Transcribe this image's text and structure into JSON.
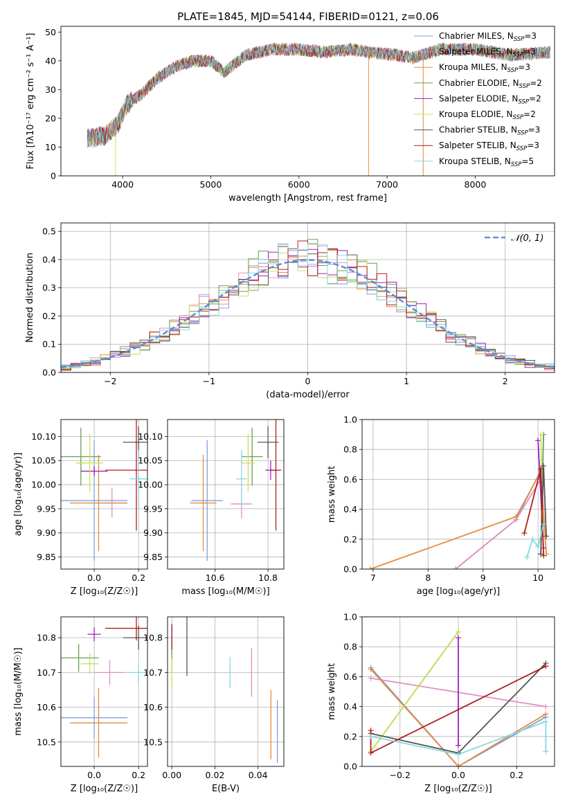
{
  "figure": {
    "title": "PLATE=1845, MJD=54144, FIBERID=0121, z=0.06"
  },
  "colors": {
    "Chabrier MILES": "#7f9fdf",
    "Salpeter MILES": "#e08fc0",
    "Kroupa MILES": "#e88a3c",
    "Chabrier ELODIE": "#6a9e4f",
    "Salpeter ELODIE": "#9b1fbf",
    "Kroupa ELODIE": "#c9e05a",
    "Chabrier STELIB": "#555555",
    "Salpeter STELIB": "#b01c1c",
    "Kroupa STELIB": "#86d8de"
  },
  "chart_data": [
    {
      "id": "spectrum",
      "type": "line",
      "xlabel": "wavelength [Angstrom, rest frame]",
      "ylabel": "Flux [fλ10⁻¹⁷ erg cm⁻² s⁻¹ A⁻¹]",
      "xlim": [
        3300,
        8900
      ],
      "ylim": [
        0,
        52
      ],
      "xticks": [
        4000,
        5000,
        6000,
        7000,
        8000
      ],
      "yticks": [
        0,
        10,
        20,
        30,
        40,
        50
      ],
      "legend_position": "top-right",
      "legend": [
        {
          "label": "Chabrier MILES, N",
          "sub": "SSP",
          "suffix": "=3"
        },
        {
          "label": "Salpeter MILES, N",
          "sub": "SSP",
          "suffix": "=3"
        },
        {
          "label": "Kroupa MILES, N",
          "sub": "SSP",
          "suffix": "=3"
        },
        {
          "label": "Chabrier ELODIE, N",
          "sub": "SSP",
          "suffix": "=2"
        },
        {
          "label": "Salpeter ELODIE, N",
          "sub": "SSP",
          "suffix": "=2"
        },
        {
          "label": "Kroupa ELODIE, N",
          "sub": "SSP",
          "suffix": "=2"
        },
        {
          "label": "Chabrier STELIB, N",
          "sub": "SSP",
          "suffix": "=3"
        },
        {
          "label": "Salpeter STELIB, N",
          "sub": "SSP",
          "suffix": "=3"
        },
        {
          "label": "Kroupa STELIB, N",
          "sub": "SSP",
          "suffix": "=5"
        }
      ],
      "x_range": [
        3600,
        8850
      ],
      "trend": [
        [
          3600,
          13
        ],
        [
          3800,
          14
        ],
        [
          3950,
          18
        ],
        [
          4050,
          25
        ],
        [
          4200,
          28
        ],
        [
          4400,
          34
        ],
        [
          4600,
          38
        ],
        [
          4800,
          40
        ],
        [
          5000,
          40
        ],
        [
          5150,
          36
        ],
        [
          5400,
          42
        ],
        [
          5700,
          44
        ],
        [
          6000,
          44
        ],
        [
          6300,
          43
        ],
        [
          6600,
          44
        ],
        [
          6800,
          43
        ],
        [
          7100,
          42
        ],
        [
          7300,
          41
        ],
        [
          7600,
          44
        ],
        [
          8000,
          44
        ],
        [
          8400,
          42
        ],
        [
          8850,
          43
        ]
      ],
      "dips": [
        {
          "x": 3920,
          "y": 0,
          "series": "Kroupa ELODIE"
        },
        {
          "x": 6790,
          "y": 0,
          "series": "Kroupa MILES"
        },
        {
          "x": 7410,
          "y": 0,
          "series": "Kroupa MILES"
        }
      ]
    },
    {
      "id": "residuals",
      "type": "histogram",
      "xlabel": "(data-model)/error",
      "ylabel": "Normed distribution",
      "xlim": [
        -2.5,
        2.5
      ],
      "ylim": [
        0,
        0.53
      ],
      "xticks": [
        -2,
        -1,
        0,
        1,
        2
      ],
      "yticks": [
        0.0,
        0.1,
        0.2,
        0.3,
        0.4,
        0.5
      ],
      "bin_width": 0.1,
      "reference": {
        "label": "𝒩(0, 1)",
        "mean": 0,
        "sigma": 1
      },
      "legend_position": "top-right"
    },
    {
      "id": "age_vs_Z",
      "type": "scatter",
      "xlabel": "Z [log₁₀(Z/Z☉)]",
      "ylabel": "age  [log₁₀(age/yr)]",
      "xlim": [
        -0.15,
        0.24
      ],
      "ylim": [
        9.825,
        10.135
      ],
      "xticks": [
        0.0,
        0.2
      ],
      "yticks": [
        9.85,
        9.9,
        9.95,
        10.0,
        10.05,
        10.1
      ],
      "points": [
        {
          "series": "Chabrier MILES",
          "x": 0.0,
          "y": 9.967,
          "xerr": 0.15,
          "yerr": 0.125
        },
        {
          "series": "Salpeter MILES",
          "x": 0.08,
          "y": 9.962,
          "xerr": 0.07,
          "yerr": 0.03
        },
        {
          "series": "Kroupa MILES",
          "x": 0.02,
          "y": 9.962,
          "xerr": 0.13,
          "yerr": 0.1
        },
        {
          "series": "Chabrier ELODIE",
          "x": -0.06,
          "y": 10.058,
          "xerr": 0.09,
          "yerr": 0.06
        },
        {
          "series": "Salpeter ELODIE",
          "x": 0.0,
          "y": 10.028,
          "xerr": 0.06,
          "yerr": 0.01
        },
        {
          "series": "Kroupa ELODIE",
          "x": -0.02,
          "y": 10.045,
          "xerr": 0.06,
          "yerr": 0.06
        },
        {
          "series": "Chabrier STELIB",
          "x": 0.2,
          "y": 10.088,
          "xerr": 0.07,
          "yerr": 0.033
        },
        {
          "series": "Salpeter STELIB",
          "x": 0.19,
          "y": 10.03,
          "xerr": 0.14,
          "yerr": 0.125
        },
        {
          "series": "Kroupa STELIB",
          "x": 0.2,
          "y": 10.012,
          "xerr": 0.04,
          "yerr": 0.06
        }
      ]
    },
    {
      "id": "age_vs_mass",
      "type": "scatter",
      "xlabel": "mass [log₁₀(M/M☉)]",
      "ylabel": "",
      "xlim": [
        10.42,
        10.86
      ],
      "ylim": [
        9.825,
        10.135
      ],
      "xticks": [
        10.6,
        10.8
      ],
      "yticks": [
        9.85,
        9.9,
        9.95,
        10.0,
        10.05,
        10.1
      ],
      "points": [
        {
          "series": "Chabrier MILES",
          "x": 10.57,
          "y": 9.967,
          "xerr": 0.06,
          "yerr": 0.125
        },
        {
          "series": "Salpeter MILES",
          "x": 10.7,
          "y": 9.96,
          "xerr": 0.04,
          "yerr": 0.03
        },
        {
          "series": "Kroupa MILES",
          "x": 10.555,
          "y": 9.962,
          "xerr": 0.05,
          "yerr": 0.1
        },
        {
          "series": "Chabrier ELODIE",
          "x": 10.74,
          "y": 10.058,
          "xerr": 0.04,
          "yerr": 0.06
        },
        {
          "series": "Salpeter ELODIE",
          "x": 10.81,
          "y": 10.03,
          "xerr": 0.02,
          "yerr": 0.02
        },
        {
          "series": "Kroupa ELODIE",
          "x": 10.725,
          "y": 10.045,
          "xerr": 0.025,
          "yerr": 0.06
        },
        {
          "series": "Chabrier STELIB",
          "x": 10.8,
          "y": 10.088,
          "xerr": 0.04,
          "yerr": 0.033
        },
        {
          "series": "Salpeter STELIB",
          "x": 10.83,
          "y": 10.03,
          "xerr": 0.02,
          "yerr": 0.125
        },
        {
          "series": "Kroupa STELIB",
          "x": 10.7,
          "y": 10.012,
          "xerr": 0.02,
          "yerr": 0.06
        }
      ]
    },
    {
      "id": "weight_vs_age",
      "type": "line",
      "xlabel": "age  [log₁₀(age/yr)]",
      "ylabel": "mass weight",
      "xlim": [
        6.8,
        10.3
      ],
      "ylim": [
        0,
        1
      ],
      "xticks": [
        7,
        8,
        9,
        10
      ],
      "yticks": [
        0.0,
        0.2,
        0.4,
        0.6,
        0.8,
        1.0
      ],
      "series": [
        {
          "name": "Chabrier MILES",
          "x": [
            8.5,
            9.6,
            10.05
          ],
          "y": [
            0.0,
            0.33,
            0.66
          ]
        },
        {
          "name": "Salpeter MILES",
          "x": [
            8.5,
            9.6,
            10.05,
            10.1
          ],
          "y": [
            0.0,
            0.33,
            0.6,
            0.4
          ]
        },
        {
          "name": "Kroupa MILES",
          "x": [
            6.95,
            9.6,
            10.05,
            10.15
          ],
          "y": [
            0.0,
            0.35,
            0.65,
            0.1
          ]
        },
        {
          "name": "Chabrier ELODIE",
          "x": [
            10.05,
            10.1
          ],
          "y": [
            0.1,
            0.9
          ]
        },
        {
          "name": "Salpeter ELODIE",
          "x": [
            10.0,
            10.1
          ],
          "y": [
            0.86,
            0.14
          ]
        },
        {
          "name": "Kroupa ELODIE",
          "x": [
            10.05,
            10.1
          ],
          "y": [
            0.9,
            0.1
          ]
        },
        {
          "name": "Chabrier STELIB",
          "x": [
            10.05,
            10.1,
            10.15
          ],
          "y": [
            0.1,
            0.69,
            0.22
          ]
        },
        {
          "name": "Salpeter STELIB",
          "x": [
            9.75,
            10.05,
            10.1
          ],
          "y": [
            0.24,
            0.67,
            0.09
          ]
        },
        {
          "name": "Kroupa STELIB",
          "x": [
            9.8,
            9.9,
            10.0,
            10.1
          ],
          "y": [
            0.08,
            0.2,
            0.15,
            0.3
          ]
        }
      ]
    },
    {
      "id": "mass_vs_Z",
      "type": "scatter",
      "xlabel": "Z [log₁₀(Z/Z☉)]",
      "ylabel": "mass [log₁₀(M/M☉)]",
      "xlim": [
        -0.15,
        0.24
      ],
      "ylim": [
        10.43,
        10.86
      ],
      "xticks": [
        0.0,
        0.2
      ],
      "yticks": [
        10.5,
        10.6,
        10.7,
        10.8
      ],
      "points": [
        {
          "series": "Chabrier MILES",
          "x": 0.0,
          "y": 10.57,
          "xerr": 0.15,
          "yerr": 0.06
        },
        {
          "series": "Salpeter MILES",
          "x": 0.07,
          "y": 10.7,
          "xerr": 0.07,
          "yerr": 0.035
        },
        {
          "series": "Kroupa MILES",
          "x": 0.02,
          "y": 10.555,
          "xerr": 0.13,
          "yerr": 0.1
        },
        {
          "series": "Chabrier ELODIE",
          "x": -0.07,
          "y": 10.742,
          "xerr": 0.09,
          "yerr": 0.04
        },
        {
          "series": "Salpeter ELODIE",
          "x": 0.0,
          "y": 10.81,
          "xerr": 0.03,
          "yerr": 0.02
        },
        {
          "series": "Kroupa ELODIE",
          "x": -0.02,
          "y": 10.725,
          "xerr": 0.04,
          "yerr": 0.03
        },
        {
          "series": "Chabrier STELIB",
          "x": 0.2,
          "y": 10.8,
          "xerr": 0.07,
          "yerr": 0.035
        },
        {
          "series": "Salpeter STELIB",
          "x": 0.19,
          "y": 10.827,
          "xerr": 0.14,
          "yerr": 0.035
        },
        {
          "series": "Kroupa STELIB",
          "x": 0.2,
          "y": 10.7,
          "xerr": 0.04,
          "yerr": 0.03
        }
      ]
    },
    {
      "id": "mass_vs_ebv",
      "type": "scatter",
      "xlabel": "E(B-V)",
      "ylabel": "",
      "xlim": [
        -0.002,
        0.052
      ],
      "ylim": [
        10.43,
        10.86
      ],
      "xticks": [
        0.0,
        0.02,
        0.04
      ],
      "yticks": [
        10.5,
        10.6,
        10.7,
        10.8
      ],
      "points": [
        {
          "series": "Chabrier MILES",
          "x": 0.049,
          "y": 10.53,
          "xerr": 0,
          "yerr": 0.09
        },
        {
          "series": "Salpeter MILES",
          "x": 0.037,
          "y": 10.7,
          "xerr": 0,
          "yerr": 0.07
        },
        {
          "series": "Kroupa MILES",
          "x": 0.046,
          "y": 10.55,
          "xerr": 0,
          "yerr": 0.1
        },
        {
          "series": "Chabrier ELODIE",
          "x": 0.0,
          "y": 10.74,
          "xerr": 0,
          "yerr": 0.04
        },
        {
          "series": "Salpeter ELODIE",
          "x": 0.0,
          "y": 10.81,
          "xerr": 0,
          "yerr": 0.03
        },
        {
          "series": "Kroupa ELODIE",
          "x": 0.0,
          "y": 10.7,
          "xerr": 0,
          "yerr": 0.04
        },
        {
          "series": "Chabrier STELIB",
          "x": 0.007,
          "y": 10.78,
          "xerr": 0,
          "yerr": 0.09
        },
        {
          "series": "Salpeter STELIB",
          "x": 0.0,
          "y": 10.8,
          "xerr": 0,
          "yerr": 0.035
        },
        {
          "series": "Kroupa STELIB",
          "x": 0.027,
          "y": 10.7,
          "xerr": 0,
          "yerr": 0.045
        }
      ]
    },
    {
      "id": "weight_vs_Z",
      "type": "line",
      "xlabel": "Z [log₁₀(Z/Z☉)]",
      "ylabel": "mass weight",
      "xlim": [
        -0.33,
        0.33
      ],
      "ylim": [
        0,
        1
      ],
      "xticks": [
        -0.2,
        0.0,
        0.2
      ],
      "yticks": [
        0.0,
        0.2,
        0.4,
        0.6,
        0.8,
        1.0
      ],
      "series": [
        {
          "name": "Chabrier MILES",
          "x": [
            -0.3,
            0.0,
            0.3
          ],
          "y": [
            0.66,
            0.0,
            0.33
          ]
        },
        {
          "name": "Salpeter MILES",
          "x": [
            -0.3,
            0.3
          ],
          "y": [
            0.59,
            0.4
          ]
        },
        {
          "name": "Kroupa MILES",
          "x": [
            -0.3,
            0.0,
            0.3
          ],
          "y": [
            0.65,
            0.0,
            0.35
          ]
        },
        {
          "name": "Chabrier ELODIE",
          "x": [
            -0.3,
            0.0
          ],
          "y": [
            0.1,
            0.9
          ]
        },
        {
          "name": "Salpeter ELODIE",
          "x": [
            0.0,
            0.0
          ],
          "y": [
            0.86,
            0.14
          ]
        },
        {
          "name": "Kroupa ELODIE",
          "x": [
            -0.3,
            0.0
          ],
          "y": [
            0.1,
            0.9
          ]
        },
        {
          "name": "Chabrier STELIB",
          "x": [
            -0.3,
            0.0,
            0.3
          ],
          "y": [
            0.22,
            0.09,
            0.69
          ]
        },
        {
          "name": "Salpeter STELIB",
          "x": [
            -0.3,
            -0.3,
            0.3
          ],
          "y": [
            0.24,
            0.09,
            0.67
          ]
        },
        {
          "name": "Kroupa STELIB",
          "x": [
            -0.3,
            0.0,
            0.3,
            0.3
          ],
          "y": [
            0.2,
            0.08,
            0.3,
            0.1
          ]
        }
      ]
    }
  ]
}
